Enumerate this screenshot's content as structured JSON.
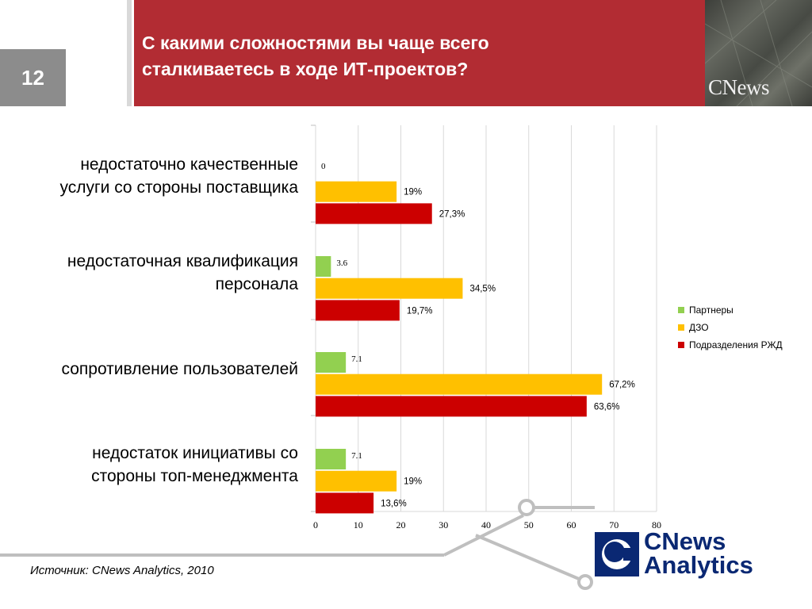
{
  "slide": {
    "number": "12",
    "title_line1": "С какими сложностями вы чаще всего",
    "title_line2": "сталкиваетесь в ходе ИТ-проектов?",
    "brand_small": "CNews",
    "source": "Источник: CNews Analytics, 2010",
    "logo_line1": "CNews",
    "logo_line2": "Analytics"
  },
  "category_labels": [
    [
      "недостаточно качественные",
      "услуги со стороны поставщика"
    ],
    [
      "недостаточная квалификация",
      "персонала"
    ],
    [
      "сопротивление пользователей"
    ],
    [
      "недостаток инициативы со",
      "стороны топ-менеджмента"
    ]
  ],
  "chart_data": {
    "type": "bar",
    "orientation": "horizontal",
    "categories": [
      "недостаточно качественные услуги со стороны поставщика",
      "недостаточная квалификация персонала",
      "сопротивление пользователей",
      "недостаток инициативы со стороны топ-менеджмента"
    ],
    "series": [
      {
        "name": "Партнеры",
        "color": "#92d050",
        "values": [
          0,
          3.6,
          7.1,
          7.1
        ],
        "labels": [
          "0",
          "3.6",
          "7.1",
          "7.1"
        ]
      },
      {
        "name": "ДЗО",
        "color": "#ffc000",
        "values": [
          19,
          34.5,
          67.2,
          19
        ],
        "labels": [
          "19%",
          "34,5%",
          "67,2%",
          "19%"
        ]
      },
      {
        "name": "Подразделения РЖД",
        "color": "#cc0000",
        "values": [
          27.3,
          19.7,
          63.6,
          13.6
        ],
        "labels": [
          "27,3%",
          "19,7%",
          "63,6%",
          "13,6%"
        ]
      }
    ],
    "xlim": [
      0,
      80
    ],
    "xticks": [
      "0",
      "10",
      "20",
      "30",
      "40",
      "50",
      "60",
      "70",
      "80"
    ],
    "grid": true,
    "legend_position": "right"
  }
}
